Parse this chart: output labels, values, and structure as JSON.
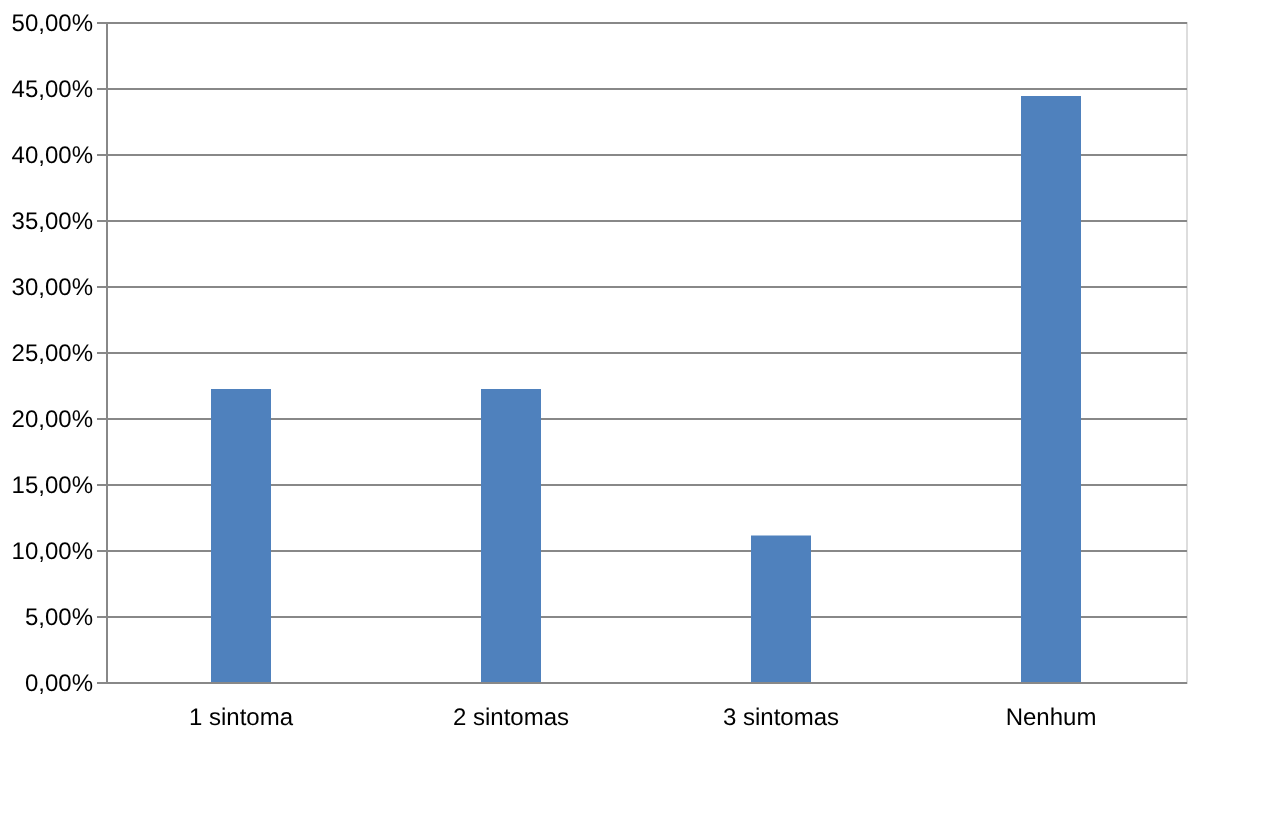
{
  "chart_data": {
    "type": "bar",
    "categories": [
      "1 sintoma",
      "2 sintomas",
      "3 sintomas",
      "Nenhum"
    ],
    "values": [
      22.2,
      22.2,
      11.1,
      44.4
    ],
    "color": "#4f81bd",
    "ylim": [
      0,
      50
    ],
    "yticks": [
      {
        "value": 0,
        "label": "0,00%"
      },
      {
        "value": 5,
        "label": "5,00%"
      },
      {
        "value": 10,
        "label": "10,00%"
      },
      {
        "value": 15,
        "label": "15,00%"
      },
      {
        "value": 20,
        "label": "20,00%"
      },
      {
        "value": 25,
        "label": "25,00%"
      },
      {
        "value": 30,
        "label": "30,00%"
      },
      {
        "value": 35,
        "label": "35,00%"
      },
      {
        "value": 40,
        "label": "40,00%"
      },
      {
        "value": 45,
        "label": "45,00%"
      },
      {
        "value": 50,
        "label": "50,00%"
      }
    ],
    "grid": "y"
  }
}
